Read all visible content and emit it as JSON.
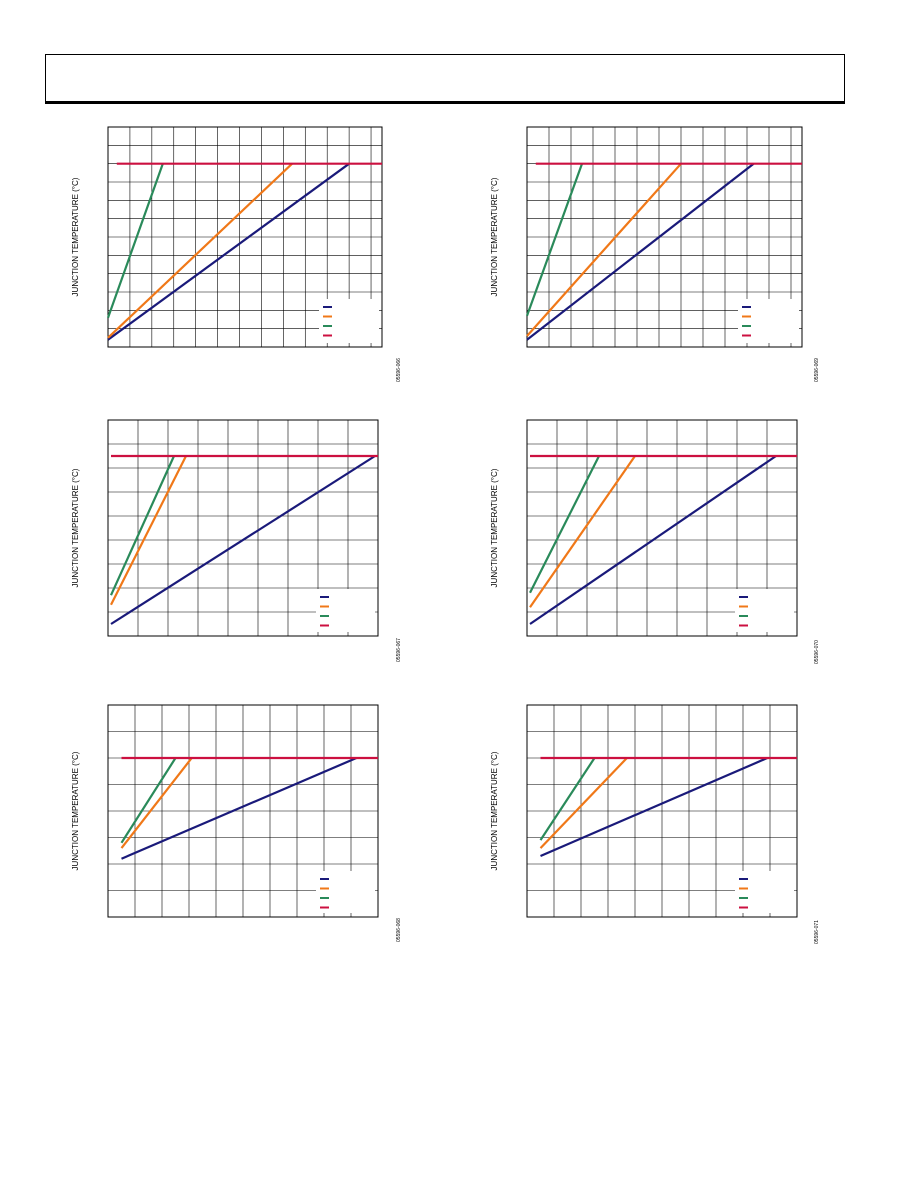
{
  "header": {
    "title": ""
  },
  "colors": {
    "series1": "#1a1a7a",
    "series2": "#f07818",
    "series3": "#2a8a5a",
    "series4": "#cc1040",
    "grid": "#000000"
  },
  "chart_data": [
    {
      "type": "line",
      "ylabel": "JUNCTION TEMPERATURE (°C)",
      "figure_id": "05596-066",
      "xlim": [
        0,
        12.5
      ],
      "ylim": [
        0,
        12
      ],
      "grid": {
        "x_divisions": 12.5,
        "y_divisions": 12
      },
      "legend_position": "bottom-right",
      "series": [
        {
          "color": "#1a1a7a",
          "x": [
            0,
            11
          ],
          "y": [
            0.4,
            10
          ]
        },
        {
          "color": "#f07818",
          "x": [
            0,
            8.4
          ],
          "y": [
            0.5,
            10
          ]
        },
        {
          "color": "#2a8a5a",
          "x": [
            0,
            2.5
          ],
          "y": [
            1.6,
            10
          ]
        },
        {
          "color": "#cc1040",
          "x": [
            0.4,
            12.5
          ],
          "y": [
            10,
            10
          ]
        }
      ]
    },
    {
      "type": "line",
      "ylabel": "JUNCTION TEMPERATURE (°C)",
      "figure_id": "05596-069",
      "xlim": [
        0,
        12.5
      ],
      "ylim": [
        0,
        12
      ],
      "grid": {
        "x_divisions": 12.5,
        "y_divisions": 12
      },
      "legend_position": "bottom-right",
      "series": [
        {
          "color": "#1a1a7a",
          "x": [
            0,
            10.3
          ],
          "y": [
            0.4,
            10
          ]
        },
        {
          "color": "#f07818",
          "x": [
            0,
            7
          ],
          "y": [
            0.6,
            10
          ]
        },
        {
          "color": "#2a8a5a",
          "x": [
            0,
            2.5
          ],
          "y": [
            1.7,
            10
          ]
        },
        {
          "color": "#cc1040",
          "x": [
            0.4,
            12.5
          ],
          "y": [
            10,
            10
          ]
        }
      ]
    },
    {
      "type": "line",
      "ylabel": "JUNCTION TEMPERATURE (°C)",
      "figure_id": "05596-067",
      "xlim": [
        0,
        9
      ],
      "ylim": [
        0,
        9
      ],
      "grid": {
        "x_divisions": 9,
        "y_divisions": 9
      },
      "legend_position": "bottom-right",
      "series": [
        {
          "color": "#1a1a7a",
          "x": [
            0.1,
            8.9
          ],
          "y": [
            0.5,
            7.5
          ]
        },
        {
          "color": "#f07818",
          "x": [
            0.1,
            2.6
          ],
          "y": [
            1.3,
            7.5
          ]
        },
        {
          "color": "#2a8a5a",
          "x": [
            0.1,
            2.2
          ],
          "y": [
            1.7,
            7.5
          ]
        },
        {
          "color": "#cc1040",
          "x": [
            0.1,
            9
          ],
          "y": [
            7.5,
            7.5
          ]
        }
      ]
    },
    {
      "type": "line",
      "ylabel": "JUNCTION TEMPERATURE (°C)",
      "figure_id": "05596-070",
      "xlim": [
        0,
        9
      ],
      "ylim": [
        0,
        9
      ],
      "grid": {
        "x_divisions": 9,
        "y_divisions": 9
      },
      "legend_position": "bottom-right",
      "series": [
        {
          "color": "#1a1a7a",
          "x": [
            0.1,
            8.3
          ],
          "y": [
            0.5,
            7.5
          ]
        },
        {
          "color": "#f07818",
          "x": [
            0.1,
            3.6
          ],
          "y": [
            1.2,
            7.5
          ]
        },
        {
          "color": "#2a8a5a",
          "x": [
            0.1,
            2.4
          ],
          "y": [
            1.8,
            7.5
          ]
        },
        {
          "color": "#cc1040",
          "x": [
            0.1,
            9
          ],
          "y": [
            7.5,
            7.5
          ]
        }
      ]
    },
    {
      "type": "line",
      "ylabel": "JUNCTION TEMPERATURE (°C)",
      "figure_id": "05596-068",
      "xlim": [
        0,
        10
      ],
      "ylim": [
        0,
        8
      ],
      "grid": {
        "x_divisions": 10,
        "y_divisions": 8
      },
      "legend_position": "bottom-right",
      "series": [
        {
          "color": "#1a1a7a",
          "x": [
            0.5,
            9.2
          ],
          "y": [
            2.2,
            6
          ]
        },
        {
          "color": "#f07818",
          "x": [
            0.5,
            3.1
          ],
          "y": [
            2.6,
            6
          ]
        },
        {
          "color": "#2a8a5a",
          "x": [
            0.5,
            2.5
          ],
          "y": [
            2.8,
            6
          ]
        },
        {
          "color": "#cc1040",
          "x": [
            0.5,
            10
          ],
          "y": [
            6,
            6
          ]
        }
      ]
    },
    {
      "type": "line",
      "ylabel": "JUNCTION TEMPERATURE (°C)",
      "figure_id": "05596-071",
      "xlim": [
        0,
        10
      ],
      "ylim": [
        0,
        8
      ],
      "grid": {
        "x_divisions": 10,
        "y_divisions": 8
      },
      "legend_position": "bottom-right",
      "series": [
        {
          "color": "#1a1a7a",
          "x": [
            0.5,
            8.9
          ],
          "y": [
            2.3,
            6
          ]
        },
        {
          "color": "#f07818",
          "x": [
            0.5,
            3.7
          ],
          "y": [
            2.6,
            6
          ]
        },
        {
          "color": "#2a8a5a",
          "x": [
            0.5,
            2.5
          ],
          "y": [
            2.9,
            6
          ]
        },
        {
          "color": "#cc1040",
          "x": [
            0.5,
            10
          ],
          "y": [
            6,
            6
          ]
        }
      ]
    }
  ]
}
